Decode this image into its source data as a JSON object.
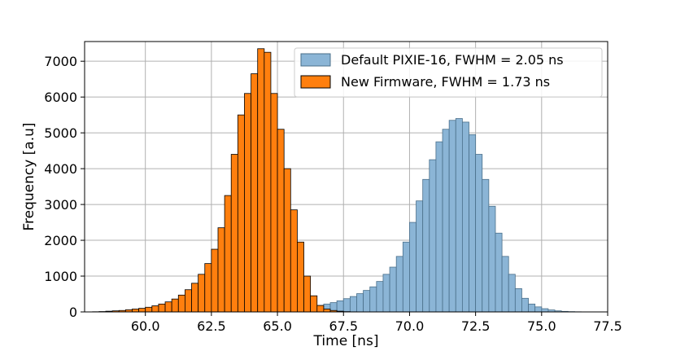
{
  "chart_data": {
    "type": "bar",
    "xlabel": "Time [ns]",
    "ylabel": "Frequency [a.u]",
    "xlim": [
      57.7,
      77.5
    ],
    "ylim": [
      0,
      7550
    ],
    "x_ticks": [
      "60.0",
      "62.5",
      "65.0",
      "67.5",
      "70.0",
      "72.5",
      "75.0",
      "77.5"
    ],
    "x_tick_values": [
      60.0,
      62.5,
      65.0,
      67.5,
      70.0,
      72.5,
      75.0,
      77.5
    ],
    "y_ticks": [
      "0",
      "1000",
      "2000",
      "3000",
      "4000",
      "5000",
      "6000",
      "7000"
    ],
    "y_tick_values": [
      0,
      1000,
      2000,
      3000,
      4000,
      5000,
      6000,
      7000
    ],
    "grid": true,
    "legend_position": "upper right",
    "bin_width": 0.25,
    "series": [
      {
        "name": "Default PIXIE-16, FWHM = 2.05 ns",
        "color": "#8bb5d6",
        "edge_color": "#4a6f8a",
        "bin_start": 64.5,
        "values": [
          20,
          30,
          45,
          60,
          80,
          100,
          120,
          150,
          180,
          220,
          260,
          310,
          370,
          430,
          510,
          600,
          700,
          850,
          1050,
          1250,
          1550,
          1950,
          2500,
          3100,
          3700,
          4250,
          4750,
          5100,
          5350,
          5400,
          5300,
          4950,
          4400,
          3700,
          2950,
          2200,
          1550,
          1050,
          650,
          380,
          220,
          140,
          90,
          55,
          30,
          15,
          8,
          4,
          2
        ]
      },
      {
        "name": "New Firmware, FWHM = 1.73 ns",
        "color": "#ff7f0e",
        "edge_color": "#000000",
        "bin_start": 58.0,
        "values": [
          5,
          10,
          20,
          30,
          40,
          60,
          80,
          100,
          130,
          170,
          220,
          280,
          360,
          470,
          620,
          800,
          1050,
          1350,
          1750,
          2350,
          3250,
          4400,
          5500,
          6100,
          6650,
          7350,
          7250,
          6100,
          5100,
          4000,
          2850,
          1950,
          1000,
          450,
          180,
          80,
          40,
          20,
          8,
          3
        ]
      }
    ]
  }
}
